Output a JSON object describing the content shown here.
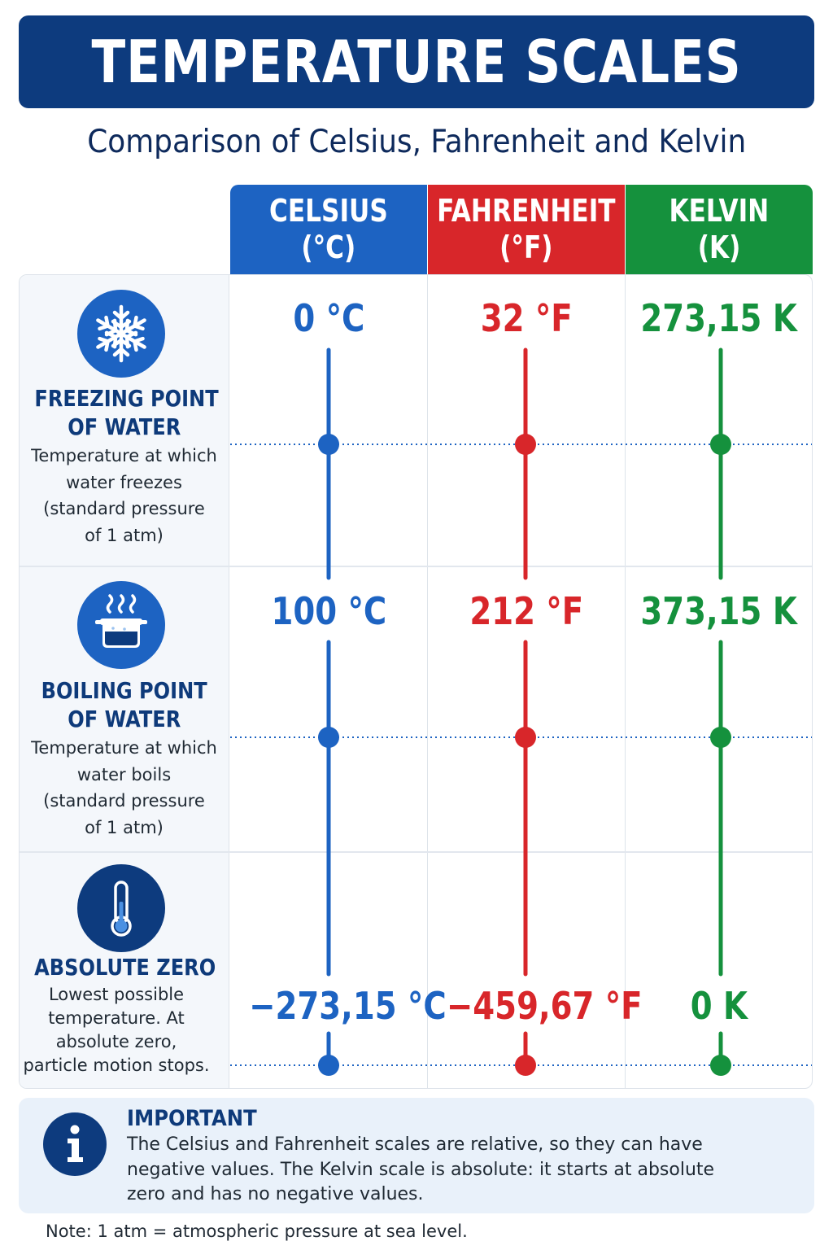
{
  "title": "TEMPERATURE SCALES",
  "subtitle": "Comparison of Celsius, Fahrenheit and Kelvin",
  "columns": [
    {
      "name": "CELSIUS",
      "unit": "(°C)",
      "color": "#1d63c2"
    },
    {
      "name": "FAHRENHEIT",
      "unit": "(°F)",
      "color": "#d8262a"
    },
    {
      "name": "KELVIN",
      "unit": "(K)",
      "color": "#15913d"
    }
  ],
  "rows": [
    {
      "icon": "snowflake-icon",
      "icon_color": "#1d63c2",
      "title_lines": [
        "FREEZING POINT",
        "OF WATER"
      ],
      "description_lines": [
        "Temperature at which",
        "water freezes",
        "(standard pressure",
        "of 1 atm)"
      ],
      "values": [
        "0 °C",
        "32 °F",
        "273,15 K"
      ]
    },
    {
      "icon": "boiling-pot-icon",
      "icon_color": "#1d63c2",
      "title_lines": [
        "BOILING POINT",
        "OF WATER"
      ],
      "description_lines": [
        "Temperature at which",
        "water boils",
        "(standard pressure",
        "of 1 atm)"
      ],
      "values": [
        "100 °C",
        "212 °F",
        "373,15 K"
      ]
    },
    {
      "icon": "thermometer-icon",
      "icon_color": "#0d3b7e",
      "title_lines": [
        "ABSOLUTE ZERO"
      ],
      "description_lines": [
        "Lowest possible",
        "temperature. At",
        "absolute zero,",
        "particle motion stops."
      ],
      "values": [
        "−273,15 °C",
        "−459,67 °F",
        "0 K"
      ]
    }
  ],
  "important": {
    "icon": "info-icon",
    "title": "IMPORTANT",
    "lines": [
      "The Celsius and Fahrenheit scales are relative, so they can have",
      "negative values. The Kelvin scale is absolute: it starts at absolute",
      "zero and has no negative values."
    ]
  },
  "note": "Note: 1 atm = atmospheric pressure at sea level."
}
